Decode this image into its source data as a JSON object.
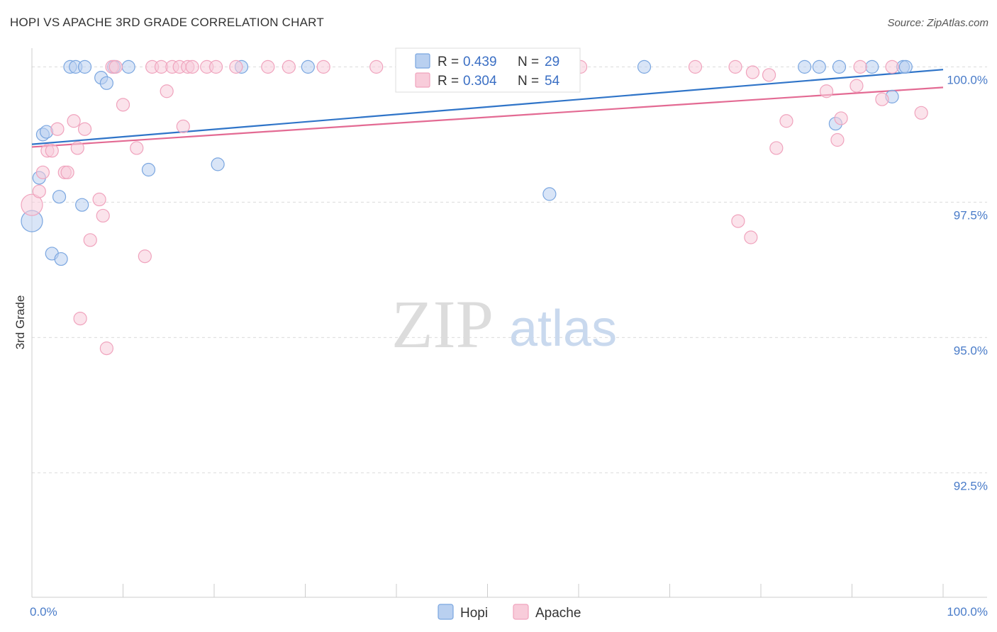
{
  "header": {
    "title": "HOPI VS APACHE 3RD GRADE CORRELATION CHART",
    "source": "Source: ZipAtlas.com"
  },
  "watermark": {
    "zip": "ZIP",
    "atlas": "atlas"
  },
  "chart_data": {
    "type": "scatter",
    "title": "HOPI VS APACHE 3RD GRADE CORRELATION CHART",
    "xlabel": "",
    "ylabel": "3rd Grade",
    "xlim": [
      0,
      100
    ],
    "ylim": [
      90.2,
      100.45
    ],
    "x_tick_labels": [
      {
        "value": 0,
        "label": "0.0%"
      },
      {
        "value": 100,
        "label": "100.0%"
      }
    ],
    "y_tick_labels": [
      {
        "value": 100,
        "label": "100.0%"
      },
      {
        "value": 97.5,
        "label": "97.5%"
      },
      {
        "value": 95,
        "label": "95.0%"
      },
      {
        "value": 92.5,
        "label": "92.5%"
      }
    ],
    "y_gridlines": [
      100,
      97.5,
      95,
      92.5
    ],
    "legend": {
      "placement": "top-center",
      "rows": [
        {
          "r_label": "R = ",
          "r_value": "0.439",
          "n_label": "N = ",
          "n_value": "29"
        },
        {
          "r_label": "R = ",
          "r_value": "0.304",
          "n_label": "N = ",
          "n_value": "54"
        }
      ]
    },
    "series": [
      {
        "name": "Hopi",
        "color": "#7aa6e0",
        "fill": "#b9d0f0",
        "trend_color": "#2f74c8",
        "trend": {
          "x": [
            0,
            100
          ],
          "y": [
            98.57,
            99.95
          ]
        },
        "points": [
          {
            "x": 0,
            "y": 97.15,
            "big": true
          },
          {
            "x": 0.8,
            "y": 97.95
          },
          {
            "x": 1.2,
            "y": 98.75
          },
          {
            "x": 1.6,
            "y": 98.8
          },
          {
            "x": 2.2,
            "y": 96.55
          },
          {
            "x": 3.0,
            "y": 97.6
          },
          {
            "x": 3.2,
            "y": 96.45
          },
          {
            "x": 4.2,
            "y": 100
          },
          {
            "x": 4.8,
            "y": 100
          },
          {
            "x": 5.5,
            "y": 97.45
          },
          {
            "x": 5.8,
            "y": 100
          },
          {
            "x": 7.6,
            "y": 99.8
          },
          {
            "x": 8.2,
            "y": 99.7
          },
          {
            "x": 9.0,
            "y": 100
          },
          {
            "x": 10.6,
            "y": 100
          },
          {
            "x": 12.8,
            "y": 98.1
          },
          {
            "x": 20.4,
            "y": 98.2
          },
          {
            "x": 23.0,
            "y": 100
          },
          {
            "x": 30.3,
            "y": 100
          },
          {
            "x": 56.8,
            "y": 97.65
          },
          {
            "x": 67.2,
            "y": 100
          },
          {
            "x": 84.8,
            "y": 100
          },
          {
            "x": 86.4,
            "y": 100
          },
          {
            "x": 88.2,
            "y": 98.95
          },
          {
            "x": 88.6,
            "y": 100
          },
          {
            "x": 92.2,
            "y": 100
          },
          {
            "x": 94.4,
            "y": 99.45
          },
          {
            "x": 95.6,
            "y": 100
          },
          {
            "x": 95.9,
            "y": 100
          }
        ]
      },
      {
        "name": "Apache",
        "color": "#f0a3bd",
        "fill": "#f8ccda",
        "trend_color": "#e36a93",
        "trend": {
          "x": [
            0,
            100
          ],
          "y": [
            98.52,
            99.62
          ]
        },
        "points": [
          {
            "x": 0,
            "y": 97.45,
            "big": true
          },
          {
            "x": 0.8,
            "y": 97.7
          },
          {
            "x": 1.2,
            "y": 98.05
          },
          {
            "x": 1.7,
            "y": 98.45
          },
          {
            "x": 2.2,
            "y": 98.45
          },
          {
            "x": 2.8,
            "y": 98.85
          },
          {
            "x": 3.6,
            "y": 98.05
          },
          {
            "x": 3.9,
            "y": 98.05
          },
          {
            "x": 4.6,
            "y": 99.0
          },
          {
            "x": 5.0,
            "y": 98.5
          },
          {
            "x": 5.3,
            "y": 95.35
          },
          {
            "x": 5.8,
            "y": 98.85
          },
          {
            "x": 6.4,
            "y": 96.8
          },
          {
            "x": 7.4,
            "y": 97.55
          },
          {
            "x": 7.8,
            "y": 97.25
          },
          {
            "x": 8.2,
            "y": 94.8
          },
          {
            "x": 8.8,
            "y": 100
          },
          {
            "x": 9.2,
            "y": 100
          },
          {
            "x": 10.0,
            "y": 99.3
          },
          {
            "x": 11.5,
            "y": 98.5
          },
          {
            "x": 12.4,
            "y": 96.5
          },
          {
            "x": 13.2,
            "y": 100
          },
          {
            "x": 14.2,
            "y": 100
          },
          {
            "x": 14.8,
            "y": 99.55
          },
          {
            "x": 15.4,
            "y": 100
          },
          {
            "x": 16.2,
            "y": 100
          },
          {
            "x": 16.6,
            "y": 98.9
          },
          {
            "x": 17.1,
            "y": 100
          },
          {
            "x": 17.6,
            "y": 100
          },
          {
            "x": 19.2,
            "y": 100
          },
          {
            "x": 20.2,
            "y": 100
          },
          {
            "x": 22.4,
            "y": 100
          },
          {
            "x": 25.9,
            "y": 100
          },
          {
            "x": 28.2,
            "y": 100
          },
          {
            "x": 32.0,
            "y": 100
          },
          {
            "x": 37.8,
            "y": 100
          },
          {
            "x": 48.8,
            "y": 100
          },
          {
            "x": 60.2,
            "y": 100
          },
          {
            "x": 72.8,
            "y": 100
          },
          {
            "x": 77.2,
            "y": 100
          },
          {
            "x": 77.5,
            "y": 97.15
          },
          {
            "x": 78.9,
            "y": 96.85
          },
          {
            "x": 79.1,
            "y": 99.9
          },
          {
            "x": 80.9,
            "y": 99.85
          },
          {
            "x": 81.7,
            "y": 98.5
          },
          {
            "x": 82.8,
            "y": 99.0
          },
          {
            "x": 87.2,
            "y": 99.55
          },
          {
            "x": 88.4,
            "y": 98.65
          },
          {
            "x": 88.8,
            "y": 99.05
          },
          {
            "x": 90.5,
            "y": 99.65
          },
          {
            "x": 90.9,
            "y": 100
          },
          {
            "x": 93.3,
            "y": 99.4
          },
          {
            "x": 94.4,
            "y": 100
          },
          {
            "x": 97.6,
            "y": 99.15
          }
        ]
      }
    ]
  }
}
